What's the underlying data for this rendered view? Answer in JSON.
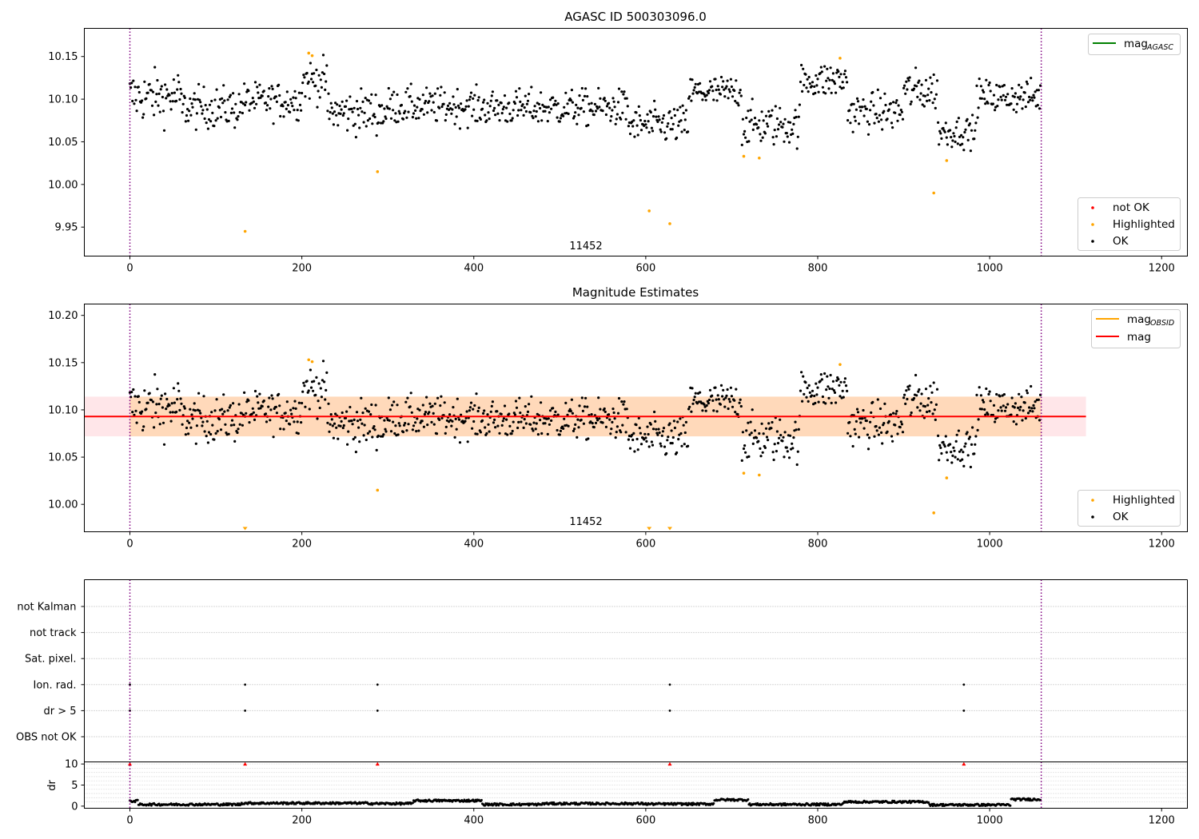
{
  "chart_data": [
    {
      "type": "scatter",
      "title": "AGASC ID 500303096.0",
      "xlim": [
        -53,
        1230
      ],
      "ylim": [
        9.916,
        10.183
      ],
      "x_ticks": [
        0,
        200,
        400,
        600,
        800,
        1000,
        1200
      ],
      "y_ticks": [
        9.95,
        10.0,
        10.05,
        10.1,
        10.15
      ],
      "y_tick_labels": [
        "9.95",
        "10.00",
        "10.05",
        "10.10",
        "10.15"
      ],
      "annotation": "11452",
      "obs_boundaries": [
        0,
        1060
      ],
      "line_legend": {
        "label": "mag",
        "subscript": "AGASC",
        "color": "#008000"
      },
      "marker_legend": [
        {
          "label": "not OK",
          "color": "#ff0000"
        },
        {
          "label": "Highlighted",
          "color": "#ffa500"
        },
        {
          "label": "OK",
          "color": "#000000"
        }
      ],
      "highlighted_points": [
        [
          134,
          9.945
        ],
        [
          208,
          10.154
        ],
        [
          212,
          10.151
        ],
        [
          288,
          10.015
        ],
        [
          604,
          9.969
        ],
        [
          628,
          9.954
        ],
        [
          714,
          10.033
        ],
        [
          732,
          10.031
        ],
        [
          826,
          10.148
        ],
        [
          935,
          9.99
        ],
        [
          950,
          10.028
        ]
      ],
      "ok_series": {
        "n_points": 1060,
        "segments": [
          {
            "x_range": [
              0,
              60
            ],
            "mean": 10.103,
            "spread": 0.02
          },
          {
            "x_range": [
              60,
              130
            ],
            "mean": 10.09,
            "spread": 0.016
          },
          {
            "x_range": [
              130,
              200
            ],
            "mean": 10.098,
            "spread": 0.014
          },
          {
            "x_range": [
              200,
              230
            ],
            "mean": 10.122,
            "spread": 0.016
          },
          {
            "x_range": [
              230,
              300
            ],
            "mean": 10.085,
            "spread": 0.017
          },
          {
            "x_range": [
              300,
              400
            ],
            "mean": 10.092,
            "spread": 0.014
          },
          {
            "x_range": [
              400,
              580
            ],
            "mean": 10.09,
            "spread": 0.014
          },
          {
            "x_range": [
              580,
              650
            ],
            "mean": 10.07,
            "spread": 0.015
          },
          {
            "x_range": [
              650,
              712
            ],
            "mean": 10.108,
            "spread": 0.013
          },
          {
            "x_range": [
              712,
              780
            ],
            "mean": 10.07,
            "spread": 0.016
          },
          {
            "x_range": [
              780,
              835
            ],
            "mean": 10.122,
            "spread": 0.014
          },
          {
            "x_range": [
              835,
              900
            ],
            "mean": 10.085,
            "spread": 0.015
          },
          {
            "x_range": [
              900,
              940
            ],
            "mean": 10.11,
            "spread": 0.016
          },
          {
            "x_range": [
              940,
              985
            ],
            "mean": 10.062,
            "spread": 0.012
          },
          {
            "x_range": [
              985,
              1060
            ],
            "mean": 10.103,
            "spread": 0.013
          }
        ]
      }
    },
    {
      "type": "scatter",
      "title": "Magnitude Estimates",
      "xlim": [
        -53,
        1230
      ],
      "ylim": [
        9.971,
        10.212
      ],
      "x_ticks": [
        0,
        200,
        400,
        600,
        800,
        1000,
        1200
      ],
      "y_ticks": [
        10.0,
        10.05,
        10.1,
        10.15,
        10.2
      ],
      "y_tick_labels": [
        "10.00",
        "10.05",
        "10.10",
        "10.15",
        "10.20"
      ],
      "annotation": "11452",
      "obs_boundaries": [
        0,
        1060
      ],
      "mag_line": {
        "value": 10.093,
        "x_range": [
          -53,
          1112
        ],
        "color": "#ff0000"
      },
      "mag_band": {
        "low": 10.072,
        "high": 10.114,
        "color": "#ffb6c1"
      },
      "obsid_band": {
        "low": 10.072,
        "high": 10.114,
        "x_range": [
          0,
          1060
        ],
        "color": "#ffa500"
      },
      "line_legend": [
        {
          "label": "mag",
          "subscript": "OBSID",
          "color": "#ffa500"
        },
        {
          "label": "mag",
          "subscript": "",
          "color": "#ff0000"
        }
      ],
      "marker_legend": [
        {
          "label": "Highlighted",
          "color": "#ffa500"
        },
        {
          "label": "OK",
          "color": "#000000"
        }
      ],
      "highlighted_points": [
        [
          208,
          10.153
        ],
        [
          212,
          10.151
        ],
        [
          288,
          10.015
        ],
        [
          714,
          10.033
        ],
        [
          732,
          10.031
        ],
        [
          826,
          10.148
        ],
        [
          935,
          9.991
        ],
        [
          950,
          10.028
        ]
      ],
      "below_axis_markers": [
        134,
        604,
        628
      ]
    },
    {
      "type": "scatter",
      "title": "",
      "xlim": [
        -53,
        1230
      ],
      "x_ticks": [
        0,
        200,
        400,
        600,
        800,
        1000,
        1200
      ],
      "flag_labels": [
        "not Kalman",
        "not track",
        "Sat. pixel.",
        "Ion. rad.",
        "dr > 5",
        "OBS not OK"
      ],
      "flag_points": {
        "Ion. rad.": [
          0,
          134,
          288,
          628,
          970
        ],
        "dr > 5": [
          0,
          134,
          288,
          628,
          970
        ]
      },
      "obs_boundaries": [
        0,
        1060
      ]
    },
    {
      "type": "scatter",
      "ylabel": "dr",
      "xlim": [
        -53,
        1230
      ],
      "ylim": [
        -0.5,
        10.5
      ],
      "x_ticks": [
        0,
        200,
        400,
        600,
        800,
        1000,
        1200
      ],
      "x_tick_labels": [
        "0",
        "200",
        "400",
        "600",
        "800",
        "1000",
        "1200"
      ],
      "y_ticks": [
        0,
        5,
        10
      ],
      "y_tick_labels": [
        "0",
        "5",
        "10"
      ],
      "clipped_markers": [
        0,
        134,
        288,
        628,
        970
      ],
      "dr_segments": [
        {
          "x_range": [
            0,
            10
          ],
          "value": 1.2
        },
        {
          "x_range": [
            10,
            130
          ],
          "value": 0.4
        },
        {
          "x_range": [
            130,
            280
          ],
          "value": 0.7
        },
        {
          "x_range": [
            280,
            330
          ],
          "value": 0.6
        },
        {
          "x_range": [
            330,
            410
          ],
          "value": 1.3
        },
        {
          "x_range": [
            410,
            480
          ],
          "value": 0.4
        },
        {
          "x_range": [
            480,
            600
          ],
          "value": 0.6
        },
        {
          "x_range": [
            600,
            680
          ],
          "value": 0.5
        },
        {
          "x_range": [
            680,
            720
          ],
          "value": 1.5
        },
        {
          "x_range": [
            720,
            830
          ],
          "value": 0.4
        },
        {
          "x_range": [
            830,
            930
          ],
          "value": 1.0
        },
        {
          "x_range": [
            930,
            1025
          ],
          "value": 0.3
        },
        {
          "x_range": [
            1025,
            1060
          ],
          "value": 1.6
        }
      ],
      "obs_boundaries": [
        0,
        1060
      ]
    }
  ]
}
